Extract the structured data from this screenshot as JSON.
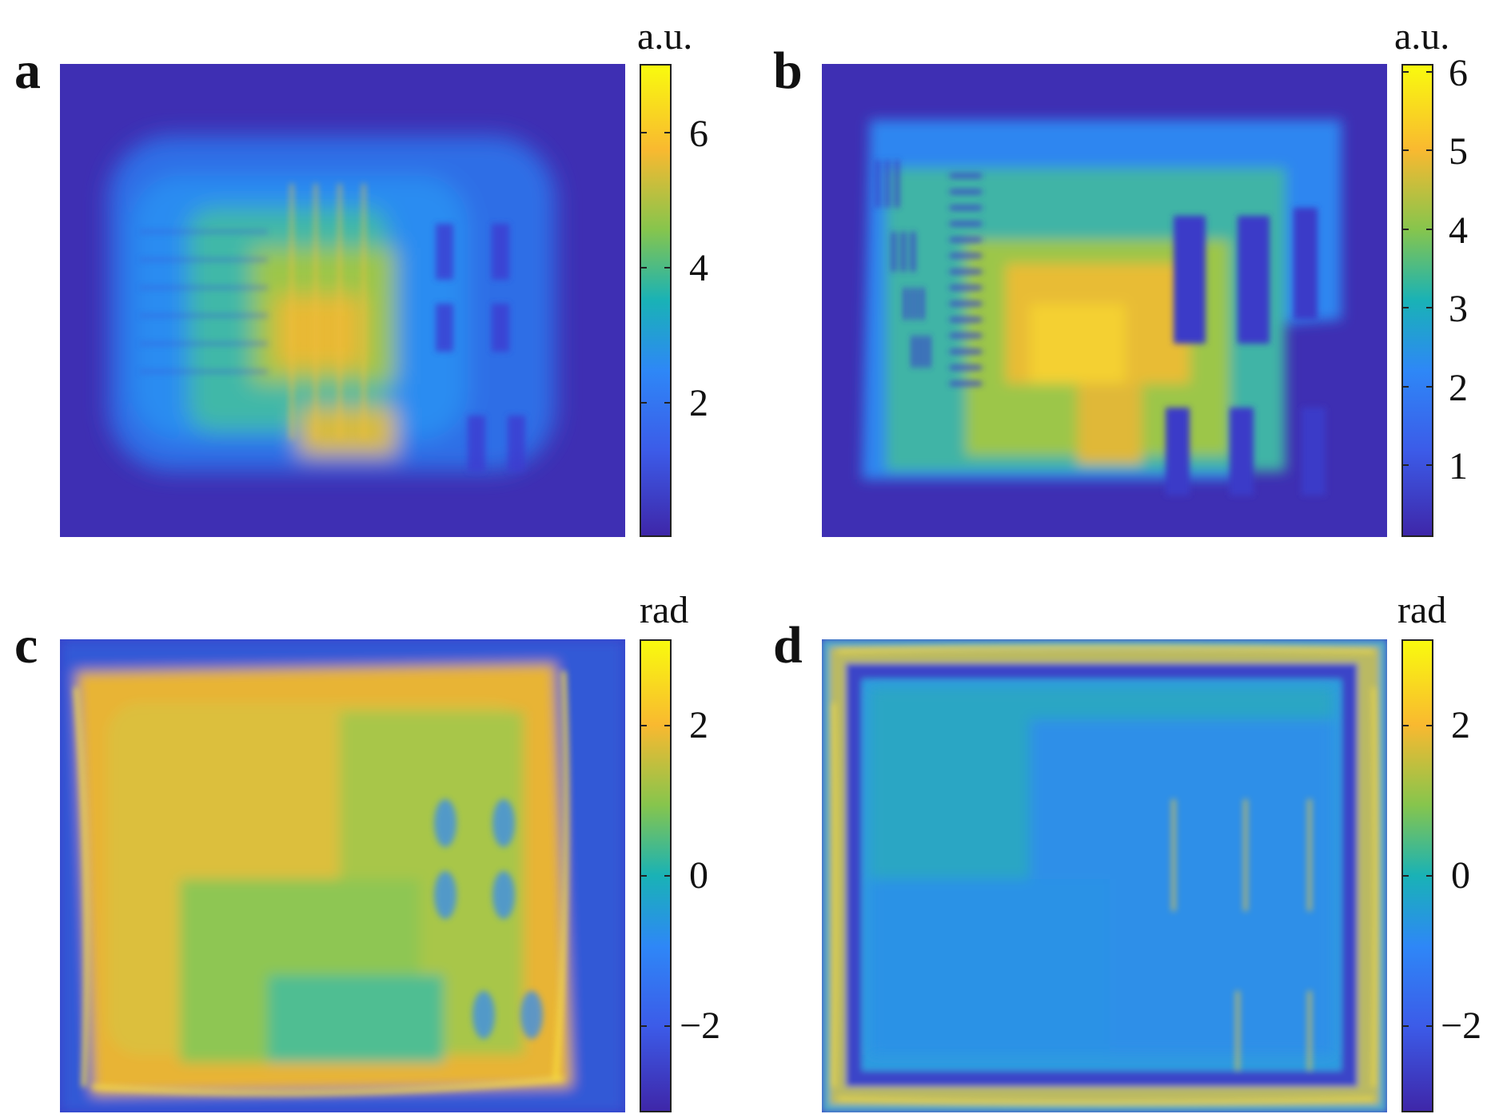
{
  "colors": {
    "parula_dark": "#3e26a8",
    "parula_blue": "#2e87f7",
    "parula_teal": "#19b2b6",
    "parula_green": "#86c54d",
    "parula_orange": "#f9b930",
    "parula_yellow": "#f9fb0e"
  },
  "panels": [
    {
      "letter": "a",
      "unit": "a.u.",
      "ticks": [
        "6",
        "4",
        "2"
      ],
      "tick_values": [
        6,
        4,
        2
      ],
      "range": [
        0,
        7
      ]
    },
    {
      "letter": "b",
      "unit": "a.u.",
      "ticks": [
        "6",
        "5",
        "4",
        "3",
        "2",
        "1"
      ],
      "tick_values": [
        6,
        5,
        4,
        3,
        2,
        1
      ],
      "range": [
        0,
        6
      ]
    },
    {
      "letter": "c",
      "unit": "rad",
      "ticks": [
        "2",
        "0",
        "−2"
      ],
      "tick_values": [
        2,
        0,
        -2
      ],
      "range": [
        -3.14,
        3.14
      ]
    },
    {
      "letter": "d",
      "unit": "rad",
      "ticks": [
        "2",
        "0",
        "−2"
      ],
      "tick_values": [
        2,
        0,
        -2
      ],
      "range": [
        -3.14,
        3.14
      ]
    }
  ]
}
